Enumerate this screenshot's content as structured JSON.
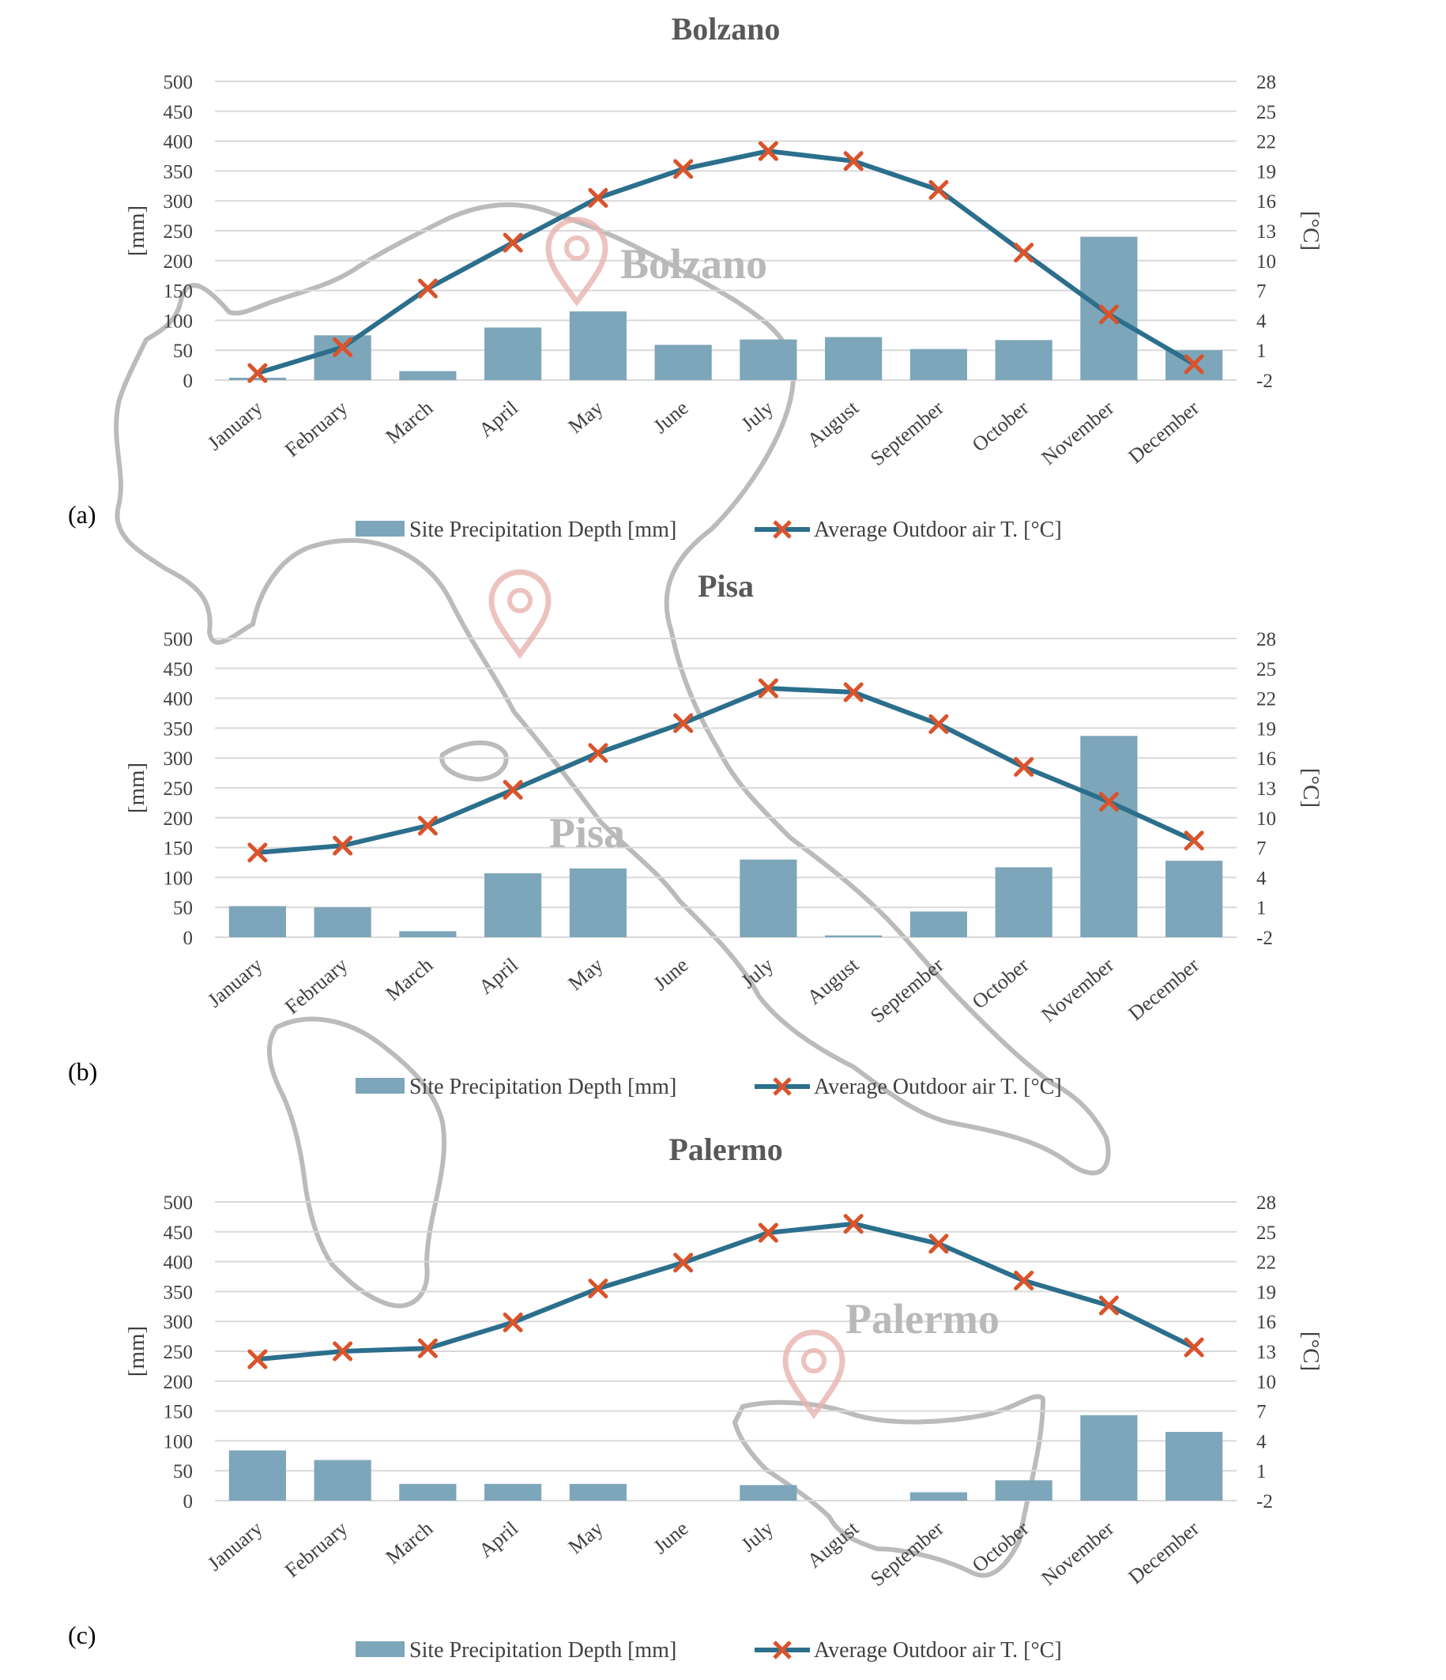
{
  "colors": {
    "bar": "#7ea6ba",
    "line": "#2b6f8c",
    "marker": "#d9532b",
    "grid": "#d9d9d9",
    "watermark_text": "#b9b9b9",
    "pin": "#e8b4b0"
  },
  "chart_data": [
    {
      "type": "bar",
      "panel_label": "(a)",
      "title": "Bolzano",
      "watermark_label": "Bolzano",
      "categories": [
        "January",
        "February",
        "March",
        "April",
        "May",
        "June",
        "July",
        "August",
        "September",
        "October",
        "November",
        "December"
      ],
      "series": [
        {
          "name": "Site Precipitation Depth [mm]",
          "type": "bar",
          "axis": "left",
          "values": [
            4,
            75,
            15,
            88,
            115,
            59,
            68,
            72,
            52,
            67,
            240,
            50
          ]
        },
        {
          "name": "Average Outdoor air T. [°C]",
          "type": "line",
          "marker": "x",
          "axis": "right",
          "values": [
            -1.3,
            1.3,
            7.2,
            11.8,
            16.3,
            19.2,
            21.0,
            20.0,
            17.1,
            10.8,
            4.6,
            -0.4
          ]
        }
      ],
      "ylabel_left": "[mm]",
      "ylim_left": [
        0,
        500
      ],
      "yticks_left": [
        "0",
        "50",
        "100",
        "150",
        "200",
        "250",
        "300",
        "350",
        "400",
        "450",
        "500"
      ],
      "ylabel_right": "[°C]",
      "ylim_right": [
        -2,
        28
      ],
      "yticks_right": [
        "-2",
        "1",
        "4",
        "7",
        "10",
        "13",
        "16",
        "19",
        "22",
        "25",
        "28"
      ],
      "grid": true,
      "legend_position": "bottom"
    },
    {
      "type": "bar",
      "panel_label": "(b)",
      "title": "Pisa",
      "watermark_label": "Pisa",
      "categories": [
        "January",
        "February",
        "March",
        "April",
        "May",
        "June",
        "July",
        "August",
        "September",
        "October",
        "November",
        "December"
      ],
      "series": [
        {
          "name": "Site Precipitation Depth [mm]",
          "type": "bar",
          "axis": "left",
          "values": [
            52,
            50,
            10,
            107,
            115,
            0,
            130,
            3,
            43,
            117,
            337,
            128
          ]
        },
        {
          "name": "Average Outdoor air T. [°C]",
          "type": "line",
          "marker": "x",
          "axis": "right",
          "values": [
            6.5,
            7.2,
            9.2,
            12.8,
            16.5,
            19.5,
            23.0,
            22.6,
            19.4,
            15.1,
            11.6,
            7.7
          ]
        }
      ],
      "ylabel_left": "[mm]",
      "ylim_left": [
        0,
        500
      ],
      "yticks_left": [
        "0",
        "50",
        "100",
        "150",
        "200",
        "250",
        "300",
        "350",
        "400",
        "450",
        "500"
      ],
      "ylabel_right": "[°C]",
      "ylim_right": [
        -2,
        28
      ],
      "yticks_right": [
        "-2",
        "1",
        "4",
        "7",
        "10",
        "13",
        "16",
        "19",
        "22",
        "25",
        "28"
      ],
      "grid": true,
      "legend_position": "bottom"
    },
    {
      "type": "bar",
      "panel_label": "(c)",
      "title": "Palermo",
      "watermark_label": "Palermo",
      "categories": [
        "January",
        "February",
        "March",
        "April",
        "May",
        "June",
        "July",
        "August",
        "September",
        "October",
        "November",
        "December"
      ],
      "series": [
        {
          "name": "Site Precipitation Depth [mm]",
          "type": "bar",
          "axis": "left",
          "values": [
            84,
            68,
            28,
            28,
            28,
            0,
            26,
            0,
            14,
            34,
            143,
            115
          ]
        },
        {
          "name": "Average Outdoor air T. [°C]",
          "type": "line",
          "marker": "x",
          "axis": "right",
          "values": [
            12.2,
            13.0,
            13.3,
            15.9,
            19.3,
            21.9,
            24.9,
            25.8,
            23.8,
            20.1,
            17.6,
            13.4
          ]
        }
      ],
      "ylabel_left": "[mm]",
      "ylim_left": [
        0,
        500
      ],
      "yticks_left": [
        "0",
        "50",
        "100",
        "150",
        "200",
        "250",
        "300",
        "350",
        "400",
        "450",
        "500"
      ],
      "ylabel_right": "[°C]",
      "ylim_right": [
        -2,
        28
      ],
      "yticks_right": [
        "-2",
        "1",
        "4",
        "7",
        "10",
        "13",
        "16",
        "19",
        "22",
        "25",
        "28"
      ],
      "grid": true,
      "legend_position": "bottom"
    }
  ]
}
